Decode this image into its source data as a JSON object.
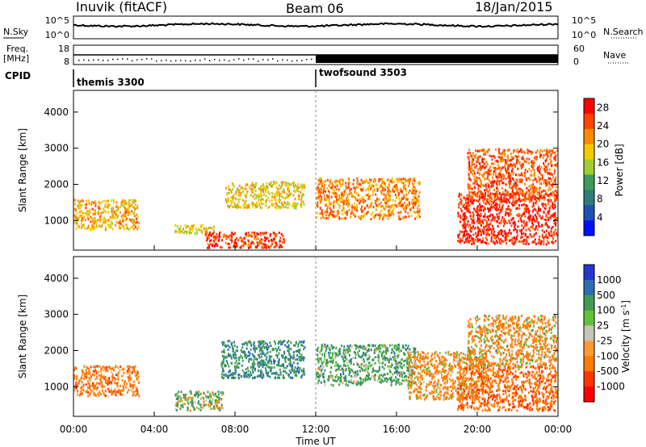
{
  "header": {
    "station": "Inuvik (fitACF)",
    "beam": "Beam 06",
    "date": "18/Jan/2015"
  },
  "labels": {
    "nsky": "N.Sky",
    "nsearch": "N.Search",
    "freq": "Freq.",
    "freq_unit": "[MHz]",
    "nave": "Nave",
    "cpid": "CPID"
  },
  "cpid": [
    {
      "name": "themis 3300",
      "start": 0.0
    },
    {
      "name": "twofsound 3503",
      "start": 12.0
    }
  ],
  "noise_axis": {
    "left_ticks": [
      "10^5",
      "10^0"
    ],
    "right_ticks": [
      "10^5",
      "10^0"
    ]
  },
  "freq_axis": {
    "left_ticks": [
      "18",
      "8"
    ],
    "right_ticks": [
      "60",
      "0"
    ]
  },
  "colors": {
    "power": [
      "#0010ff",
      "#1f50b6",
      "#2f7c7a",
      "#3e9a5a",
      "#9fcf2f",
      "#f8c800",
      "#ff8a00",
      "#ff4400",
      "#ff0000"
    ],
    "velocity": [
      "#2535d0",
      "#2b6fb0",
      "#3f9a55",
      "#63c23a",
      "#c9c5b5",
      "#ff9a30",
      "#ff7a00",
      "#ff3300",
      "#ff0000"
    ]
  },
  "chart_data": [
    {
      "type": "heatmap",
      "name": "Power",
      "ylabel": "Slant Range [km]",
      "ylim": [
        180,
        4600
      ],
      "yticks": [
        1000,
        2000,
        3000,
        4000
      ],
      "xlim": [
        0,
        24
      ],
      "xticks": [
        "00:00",
        "04:00",
        "08:00",
        "12:00",
        "16:00",
        "20:00",
        "00:00"
      ],
      "colorbar": {
        "label": "Power [dB]",
        "ticks": [
          4,
          8,
          12,
          16,
          20,
          24,
          28
        ],
        "range": [
          0,
          30
        ]
      },
      "regions": [
        {
          "t": [
            0.0,
            3.3
          ],
          "r": [
            700,
            1600
          ],
          "level": 20
        },
        {
          "t": [
            5.0,
            7.0
          ],
          "r": [
            600,
            900
          ],
          "level": 18
        },
        {
          "t": [
            6.5,
            10.5
          ],
          "r": [
            200,
            700
          ],
          "level": 26
        },
        {
          "t": [
            7.5,
            11.5
          ],
          "r": [
            1300,
            2100
          ],
          "level": 18
        },
        {
          "t": [
            12.0,
            17.2
          ],
          "r": [
            1000,
            2200
          ],
          "level": 22
        },
        {
          "t": [
            19.0,
            24.0
          ],
          "r": [
            300,
            1800
          ],
          "level": 27
        },
        {
          "t": [
            19.5,
            24.0
          ],
          "r": [
            1500,
            3000
          ],
          "level": 24
        }
      ]
    },
    {
      "type": "heatmap",
      "name": "Velocity",
      "ylabel": "Slant Range [km]",
      "ylim": [
        180,
        4600
      ],
      "yticks": [
        1000,
        2000,
        3000,
        4000
      ],
      "xlim": [
        0,
        24
      ],
      "xticks": [
        "00:00",
        "04:00",
        "08:00",
        "12:00",
        "16:00",
        "20:00",
        "00:00"
      ],
      "xlabel": "Time UT",
      "colorbar": {
        "label": "Velocity [m s^-1]",
        "ticks": [
          "1000",
          "500",
          "100",
          "25",
          "-25",
          "-100",
          "-500",
          "-1000"
        ]
      },
      "regions": [
        {
          "t": [
            0.0,
            3.3
          ],
          "r": [
            700,
            1600
          ],
          "level": -300
        },
        {
          "t": [
            5.0,
            7.5
          ],
          "r": [
            300,
            900
          ],
          "level": 150
        },
        {
          "t": [
            7.3,
            11.5
          ],
          "r": [
            1200,
            2300
          ],
          "level": 400
        },
        {
          "t": [
            12.0,
            17.0
          ],
          "r": [
            1000,
            2200
          ],
          "level": 250
        },
        {
          "t": [
            16.5,
            20.5
          ],
          "r": [
            600,
            2000
          ],
          "level": -200
        },
        {
          "t": [
            19.0,
            24.0
          ],
          "r": [
            300,
            1600
          ],
          "level": -400
        },
        {
          "t": [
            19.5,
            24.0
          ],
          "r": [
            1500,
            3000
          ],
          "level": -150
        }
      ]
    }
  ]
}
